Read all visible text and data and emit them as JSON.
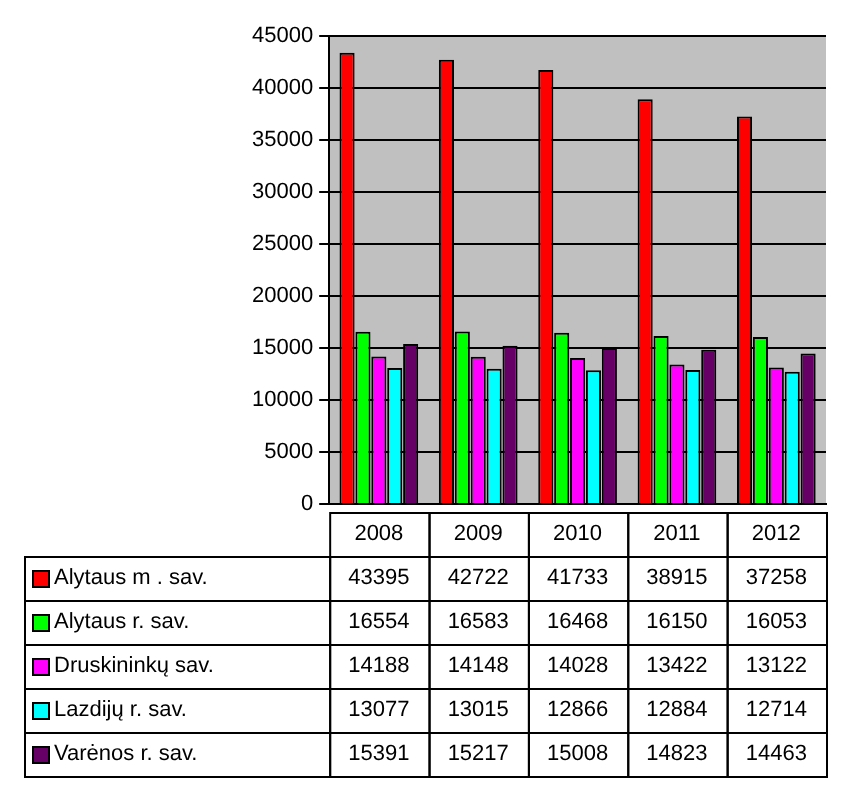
{
  "chart_data": {
    "type": "bar",
    "categories": [
      "2008",
      "2009",
      "2010",
      "2011",
      "2012"
    ],
    "series": [
      {
        "name": "Alytaus m . sav.",
        "color": "#ff0000",
        "values": [
          43395,
          42722,
          41733,
          38915,
          37258
        ]
      },
      {
        "name": "Alytaus r. sav.",
        "color": "#00ff00",
        "values": [
          16554,
          16583,
          16468,
          16150,
          16053
        ]
      },
      {
        "name": "Druskininkų sav.",
        "color": "#ff00ff",
        "values": [
          14188,
          14148,
          14028,
          13422,
          13122
        ]
      },
      {
        "name": "Lazdijų r. sav.",
        "color": "#00ffff",
        "values": [
          13077,
          13015,
          12866,
          12884,
          12714
        ]
      },
      {
        "name": "Varėnos r. sav.",
        "color": "#660066",
        "values": [
          15391,
          15217,
          15008,
          14823,
          14463
        ]
      }
    ],
    "ylim": [
      0,
      45000
    ],
    "yticks": [
      0,
      5000,
      10000,
      15000,
      20000,
      25000,
      30000,
      35000,
      40000,
      45000
    ],
    "grid": "y",
    "legend": "bottom",
    "data_labels": true
  }
}
